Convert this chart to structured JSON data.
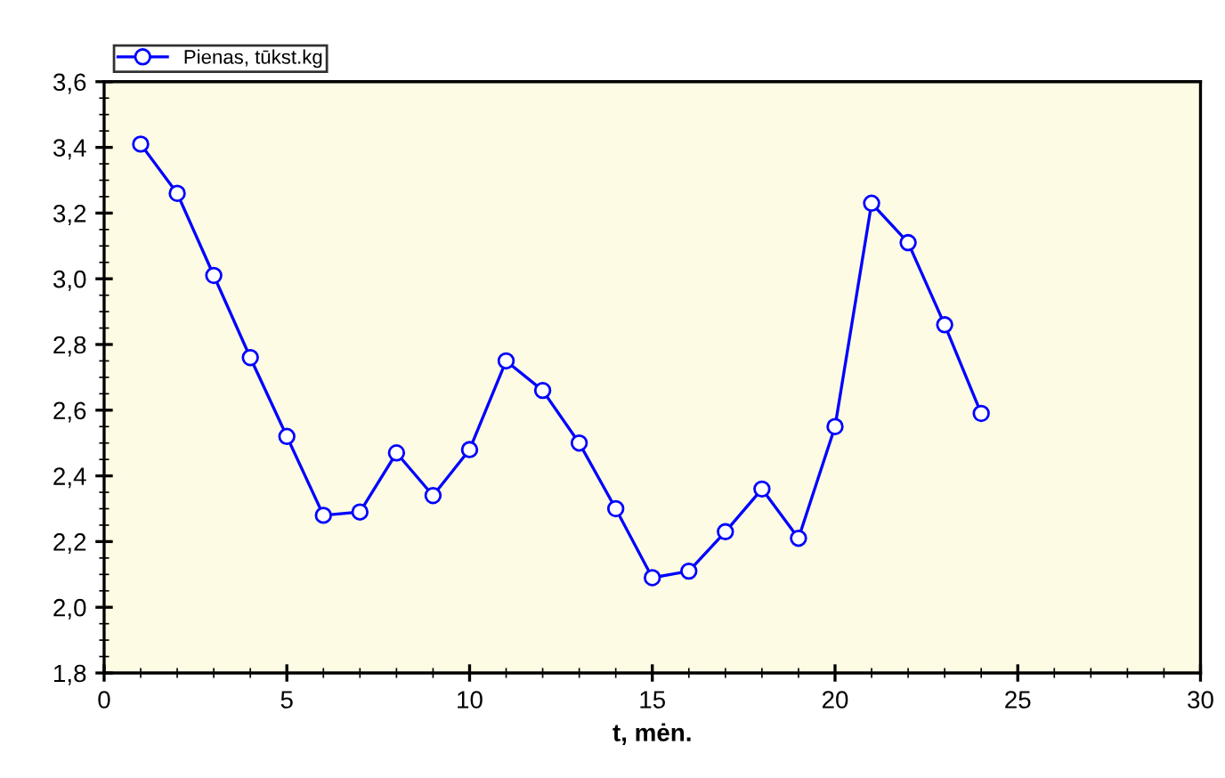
{
  "chart_data": {
    "type": "line",
    "xlabel": "t, mėn.",
    "x": [
      1,
      2,
      3,
      4,
      5,
      6,
      7,
      8,
      9,
      10,
      11,
      12,
      13,
      14,
      15,
      16,
      17,
      18,
      19,
      20,
      21,
      22,
      23,
      24
    ],
    "series": [
      {
        "name": "Pienas, tūkst.kg",
        "color": "#0000ff",
        "values": [
          3.41,
          3.26,
          3.01,
          2.76,
          2.52,
          2.28,
          2.29,
          2.47,
          2.34,
          2.48,
          2.75,
          2.66,
          2.5,
          2.3,
          2.09,
          2.11,
          2.23,
          2.36,
          2.21,
          2.55,
          3.23,
          3.11,
          2.86,
          2.59
        ]
      }
    ],
    "xlim": [
      0,
      30
    ],
    "xticks": [
      0,
      5,
      10,
      15,
      20,
      25,
      30
    ],
    "ylim": [
      1.8,
      3.6
    ],
    "yticks": [
      {
        "value": 1.8,
        "label": "1,8"
      },
      {
        "value": 2.0,
        "label": "2,0"
      },
      {
        "value": 2.2,
        "label": "2,2"
      },
      {
        "value": 2.4,
        "label": "2,4"
      },
      {
        "value": 2.6,
        "label": "2,6"
      },
      {
        "value": 2.8,
        "label": "2,8"
      },
      {
        "value": 3.0,
        "label": "3,0"
      },
      {
        "value": 3.2,
        "label": "3,2"
      },
      {
        "value": 3.4,
        "label": "3,4"
      },
      {
        "value": 3.6,
        "label": "3,6"
      }
    ],
    "marker": "circle",
    "line_style": "solid",
    "legend": "top left",
    "grid": false
  }
}
